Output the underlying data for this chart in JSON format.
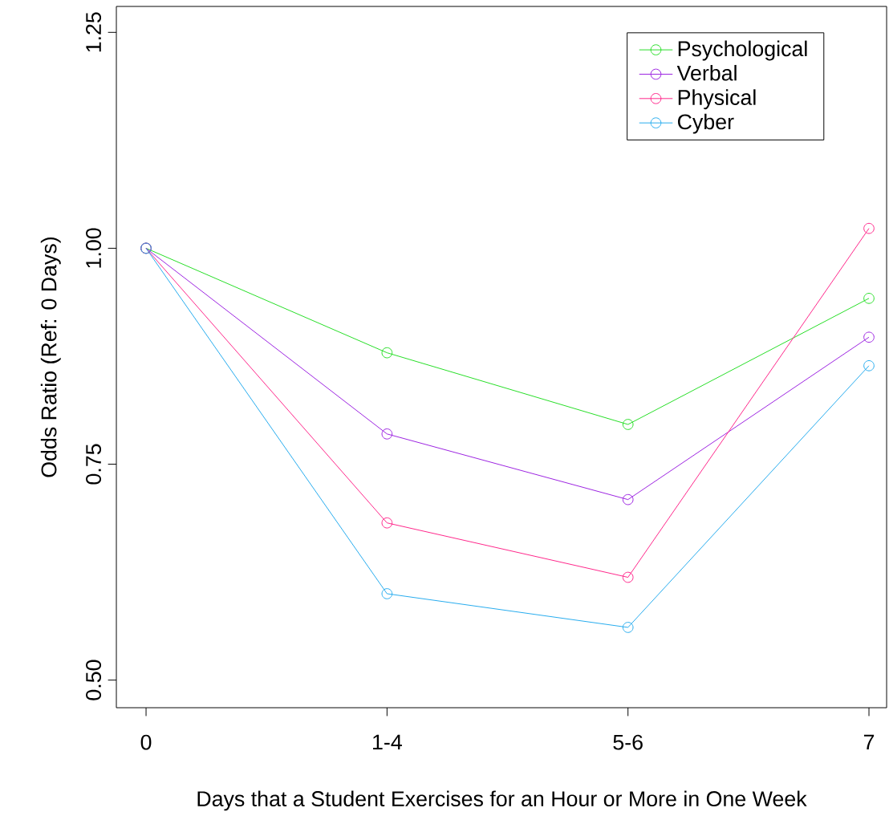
{
  "chart_data": {
    "type": "line",
    "xlabel": "Days that a Student Exercises for an Hour or More in One Week",
    "ylabel": "Odds Ratio (Ref: 0 Days)",
    "categories": [
      "0",
      "1-4",
      "5-6",
      "7"
    ],
    "series": [
      {
        "name": "Psychological",
        "color": "#22dd22",
        "values": [
          1.0,
          0.879,
          0.796,
          0.942
        ]
      },
      {
        "name": "Verbal",
        "color": "#9a1fe0",
        "values": [
          1.0,
          0.785,
          0.709,
          0.897
        ]
      },
      {
        "name": "Physical",
        "color": "#ff2288",
        "values": [
          1.0,
          0.682,
          0.619,
          1.023
        ]
      },
      {
        "name": "Cyber",
        "color": "#22aaee",
        "values": [
          1.0,
          0.6,
          0.561,
          0.864
        ]
      }
    ],
    "ylim": [
      0.468,
      1.28
    ],
    "yticks": [
      {
        "value": 0.5,
        "label": "0.50"
      },
      {
        "value": 0.75,
        "label": "0.75"
      },
      {
        "value": 1.0,
        "label": "1.00"
      },
      {
        "value": 1.25,
        "label": "1.25"
      }
    ],
    "legend": "top right",
    "marker": "circle",
    "line_style": "solid",
    "grid": false
  }
}
